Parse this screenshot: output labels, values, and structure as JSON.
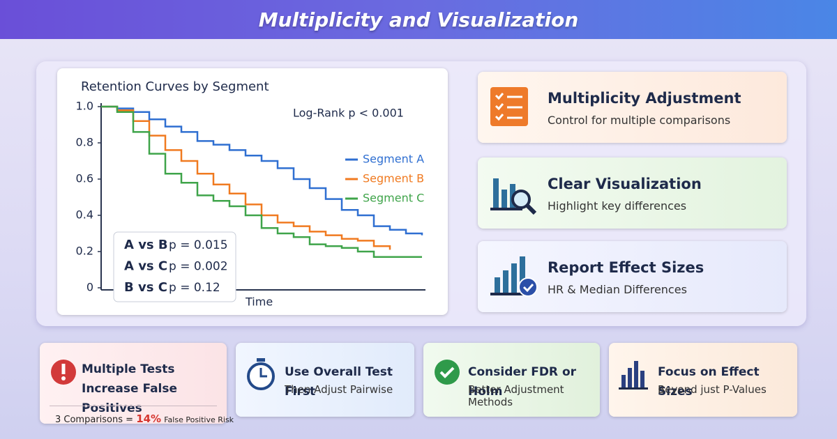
{
  "header": {
    "title": "Multiplicity and Visualization"
  },
  "chart_data": {
    "type": "line",
    "title": "Retention Curves by Segment",
    "annotation": "Log-Rank p < 0.001",
    "x_label": "Time",
    "x": [
      0,
      5,
      10,
      15,
      20,
      25,
      30,
      35,
      40,
      45,
      50,
      55,
      60,
      65,
      70,
      75,
      80,
      85,
      90,
      95,
      100
    ],
    "xlim": [
      0,
      100
    ],
    "ylim": [
      0,
      1
    ],
    "yticks": [
      {
        "value": 1,
        "label": "1.0"
      },
      0.8,
      0.6,
      0.4,
      0.2,
      0
    ],
    "step": true,
    "series": [
      {
        "name": "Segment A",
        "color": "#2f6fd1",
        "values": [
          1.0,
          0.99,
          0.97,
          0.93,
          0.89,
          0.86,
          0.81,
          0.79,
          0.76,
          0.73,
          0.7,
          0.66,
          0.6,
          0.55,
          0.49,
          0.43,
          0.4,
          0.34,
          0.32,
          0.3,
          0.29
        ]
      },
      {
        "name": "Segment B",
        "color": "#f07a20",
        "values": [
          1.0,
          0.98,
          0.92,
          0.84,
          0.76,
          0.7,
          0.63,
          0.57,
          0.52,
          0.46,
          0.4,
          0.36,
          0.34,
          0.31,
          0.29,
          0.27,
          0.26,
          0.23,
          0.21,
          null,
          null
        ]
      },
      {
        "name": "Segment C",
        "color": "#3fa44a",
        "values": [
          1.0,
          0.97,
          0.86,
          0.74,
          0.63,
          0.58,
          0.51,
          0.48,
          0.45,
          0.4,
          0.33,
          0.3,
          0.28,
          0.24,
          0.23,
          0.22,
          0.2,
          0.17,
          0.17,
          0.17,
          0.17
        ]
      }
    ],
    "comparisons": [
      {
        "pair": "A vs B",
        "p": "p = 0.015"
      },
      {
        "pair": "A vs C",
        "p": "p = 0.002"
      },
      {
        "pair": "B vs C",
        "p": "p = 0.12"
      }
    ]
  },
  "side_cards": [
    {
      "title": "Multiplicity Adjustment",
      "subtitle": "Control for multiple comparisons"
    },
    {
      "title": "Clear Visualization",
      "subtitle": "Highlight key differences"
    },
    {
      "title": "Report Effect Sizes",
      "subtitle": "HR & Median Differences"
    }
  ],
  "bottom_cards": [
    {
      "title": [
        "Multiple Tests",
        "Increase False Positives"
      ],
      "footer": [
        "3 Comparisons =",
        "14%",
        "False Positive Risk"
      ]
    },
    {
      "title": [
        "Use Overall Test First"
      ],
      "subtitle": "Then Adjust Pairwise"
    },
    {
      "title": [
        "Consider FDR or Holm"
      ],
      "subtitle": "Better Adjustment Methods"
    },
    {
      "title": [
        "Focus on Effect Sizes"
      ],
      "subtitle": "Beyond just P-Values"
    }
  ]
}
